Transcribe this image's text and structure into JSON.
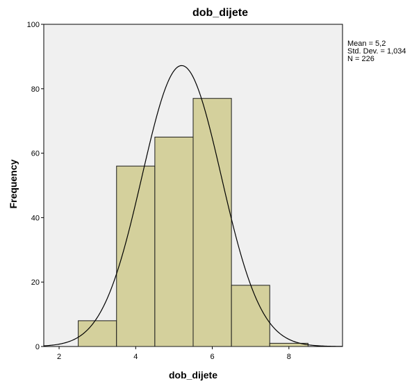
{
  "chart_data": {
    "type": "bar",
    "title": "dob_dijete",
    "xlabel": "dob_dijete",
    "ylabel": "Frequency",
    "bins": [
      {
        "start": 2.5,
        "end": 3.5,
        "value": 8
      },
      {
        "start": 3.5,
        "end": 4.5,
        "value": 56
      },
      {
        "start": 4.5,
        "end": 5.5,
        "value": 65
      },
      {
        "start": 5.5,
        "end": 6.5,
        "value": 77
      },
      {
        "start": 6.5,
        "end": 7.5,
        "value": 19
      },
      {
        "start": 7.5,
        "end": 8.5,
        "value": 1
      }
    ],
    "xlim": [
      1.6,
      9.4
    ],
    "ylim": [
      0,
      100
    ],
    "x_ticks": [
      2,
      4,
      6,
      8
    ],
    "y_ticks": [
      0,
      20,
      40,
      60,
      80,
      100
    ],
    "normal_curve": {
      "mean": 5.2,
      "sd": 1.034,
      "n": 226,
      "bin_width": 1
    },
    "stats_lines": [
      "Mean = 5,2",
      "Std. Dev. = 1,034",
      "N = 226"
    ],
    "grid": false,
    "colors": {
      "bar_fill": "#d4d09c",
      "bar_stroke": "#1a1a1a",
      "plot_background": "#f0f0f0",
      "curve": "#000000"
    }
  }
}
